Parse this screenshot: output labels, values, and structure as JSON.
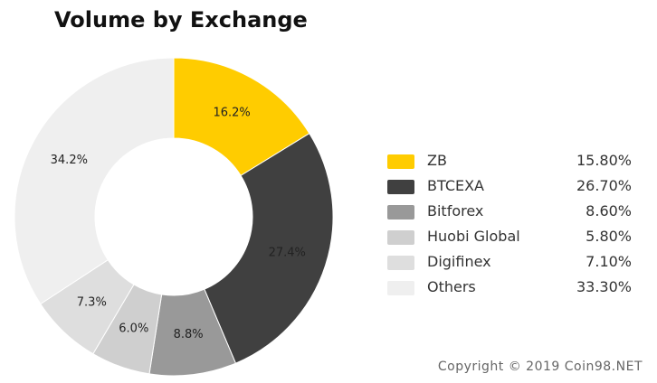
{
  "chart_data": {
    "type": "pie",
    "title": "Volume by Exchange",
    "donut": true,
    "slices": [
      {
        "label": "16.2%",
        "value": 16.2,
        "color": "#FFCC00"
      },
      {
        "label": "27.4%",
        "value": 27.4,
        "color": "#404040"
      },
      {
        "label": "8.8%",
        "value": 8.8,
        "color": "#999999"
      },
      {
        "label": "6.0%",
        "value": 6.0,
        "color": "#CFCFCF"
      },
      {
        "label": "7.3%",
        "value": 7.3,
        "color": "#DEDEDE"
      },
      {
        "label": "34.2%",
        "value": 34.2,
        "color": "#EFEFEF"
      }
    ],
    "legend": [
      {
        "name": "ZB",
        "value": "15.80%",
        "color": "#FFCC00"
      },
      {
        "name": "BTCEXA",
        "value": "26.70%",
        "color": "#404040"
      },
      {
        "name": "Bitforex",
        "value": "8.60%",
        "color": "#999999"
      },
      {
        "name": "Huobi Global",
        "value": "5.80%",
        "color": "#CFCFCF"
      },
      {
        "name": "Digifinex",
        "value": "7.10%",
        "color": "#DEDEDE"
      },
      {
        "name": "Others",
        "value": "33.30%",
        "color": "#EFEFEF"
      }
    ],
    "legend_position": "right"
  },
  "footer": {
    "copyright": "Copyright © 2019 Coin98.NET"
  }
}
